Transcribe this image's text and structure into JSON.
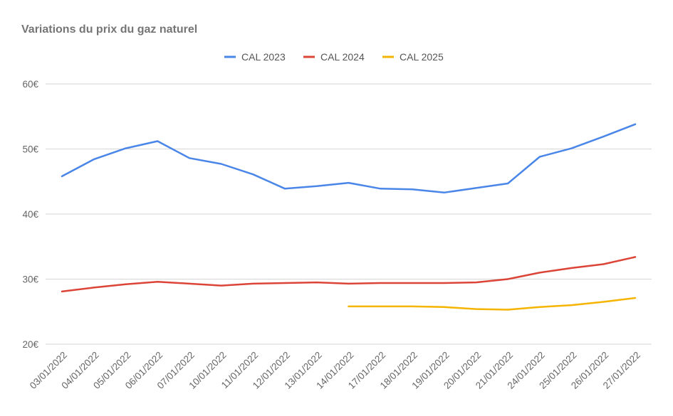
{
  "chart_data": {
    "type": "line",
    "title": "Variations du prix du gaz naturel",
    "xlabel": "",
    "ylabel": "",
    "ylim": [
      20,
      60
    ],
    "yticks": [
      20,
      30,
      40,
      50,
      60
    ],
    "ytick_labels": [
      "20€",
      "30€",
      "40€",
      "50€",
      "60€"
    ],
    "grid": true,
    "legend_position": "top",
    "categories": [
      "03/01/2022",
      "04/01/2022",
      "05/01/2022",
      "06/01/2022",
      "07/01/2022",
      "10/01/2022",
      "11/01/2022",
      "12/01/2022",
      "13/01/2022",
      "14/01/2022",
      "17/01/2022",
      "18/01/2022",
      "19/01/2022",
      "20/01/2022",
      "21/01/2022",
      "24/01/2022",
      "25/01/2022",
      "26/01/2022",
      "27/01/2022"
    ],
    "series": [
      {
        "name": "CAL 2023",
        "color": "#4a86e8",
        "values": [
          45.8,
          48.4,
          50.1,
          51.2,
          48.6,
          47.7,
          46.1,
          43.9,
          44.3,
          44.8,
          43.9,
          43.8,
          43.3,
          44.0,
          44.7,
          48.8,
          50.1,
          51.9,
          53.8
        ]
      },
      {
        "name": "CAL 2024",
        "color": "#db4437",
        "values": [
          28.1,
          28.7,
          29.2,
          29.6,
          29.3,
          29.0,
          29.3,
          29.4,
          29.5,
          29.3,
          29.4,
          29.4,
          29.4,
          29.5,
          30.0,
          31.0,
          31.7,
          32.3,
          33.4
        ]
      },
      {
        "name": "CAL 2025",
        "color": "#f4b400",
        "values": [
          null,
          null,
          null,
          null,
          null,
          null,
          null,
          null,
          null,
          25.8,
          25.8,
          25.8,
          25.7,
          25.4,
          25.3,
          25.7,
          26.0,
          26.5,
          27.1
        ]
      }
    ]
  }
}
